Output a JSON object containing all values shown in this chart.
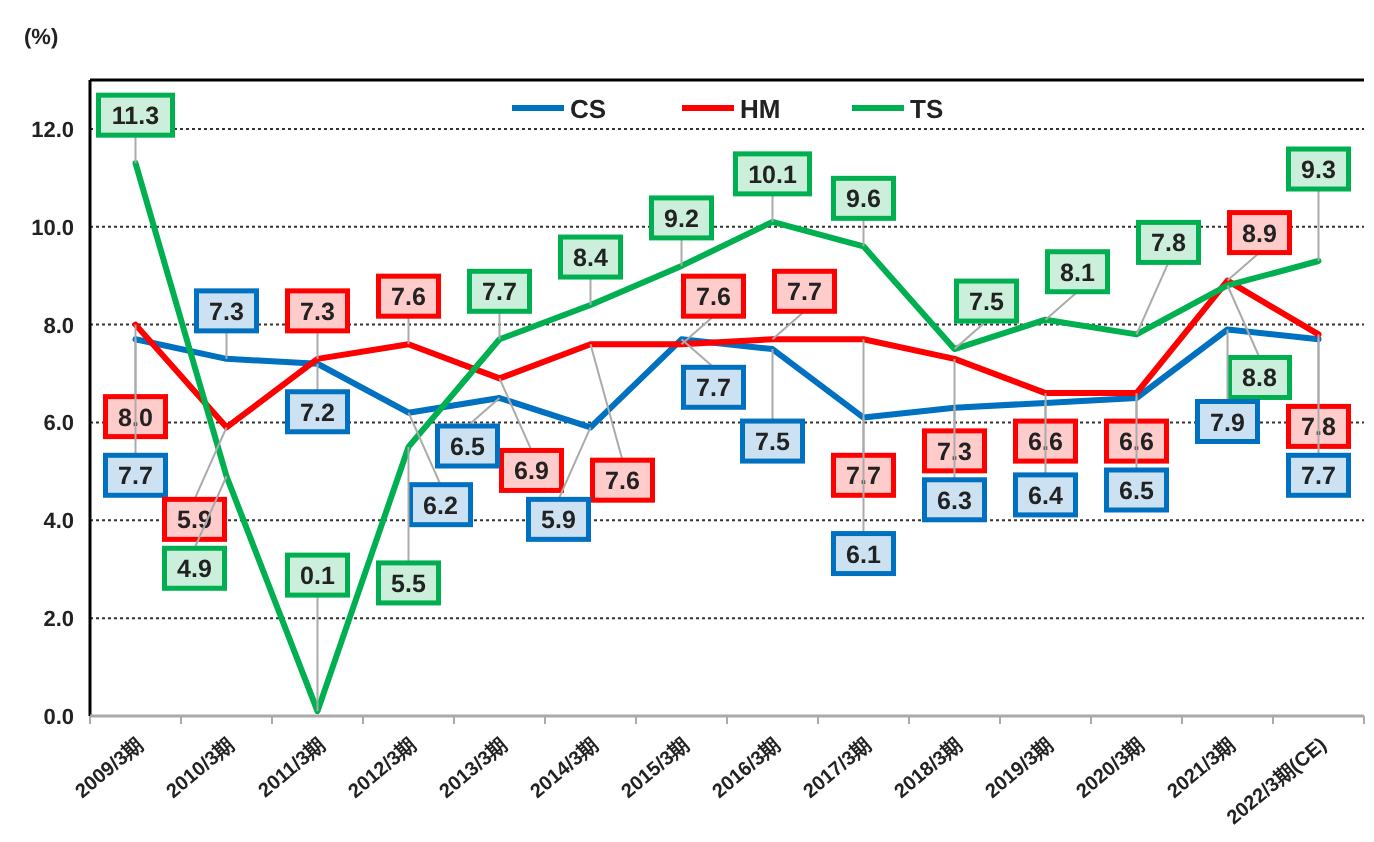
{
  "chart_data": {
    "type": "line",
    "ylabel": "(%)",
    "categories": [
      "2009/3期",
      "2010/3期",
      "2011/3期",
      "2012/3期",
      "2013/3期",
      "2014/3期",
      "2015/3期",
      "2016/3期",
      "2017/3期",
      "2018/3期",
      "2019/3期",
      "2020/3期",
      "2021/3期",
      "2022/3期(CE)"
    ],
    "series": [
      {
        "name": "CS",
        "color": "#0070c0",
        "values": [
          7.7,
          7.3,
          7.2,
          6.2,
          6.5,
          5.9,
          7.7,
          7.5,
          6.1,
          6.3,
          6.4,
          6.5,
          7.9,
          7.7
        ],
        "value_labels": [
          "7.7",
          "7.3",
          "7.2",
          "6.2",
          "6.5",
          "5.9",
          "7.7",
          "7.5",
          "6.1",
          "6.3",
          "6.4",
          "6.5",
          "7.9",
          "7.7"
        ]
      },
      {
        "name": "HM",
        "color": "#ff0000",
        "values": [
          8.0,
          5.9,
          7.3,
          7.6,
          6.9,
          7.6,
          7.6,
          7.7,
          7.7,
          7.3,
          6.6,
          6.6,
          8.9,
          7.8
        ],
        "value_labels": [
          "8.0",
          "5.9",
          "7.3",
          "7.6",
          "6.9",
          "7.6",
          "7.6",
          "7.7",
          "7.7",
          "7.3",
          "6.6",
          "6.6",
          "8.9",
          "7.8"
        ]
      },
      {
        "name": "TS",
        "color": "#00b050",
        "values": [
          11.3,
          4.9,
          0.1,
          5.5,
          7.7,
          8.4,
          9.2,
          10.1,
          9.6,
          7.5,
          8.1,
          7.8,
          8.8,
          9.3
        ],
        "value_labels": [
          "11.3",
          "4.9",
          "0.1",
          "5.5",
          "7.7",
          "8.4",
          "9.2",
          "10.1",
          "9.6",
          "7.5",
          "8.1",
          "7.8",
          "8.8",
          "9.3"
        ]
      }
    ],
    "ylim": [
      0,
      13
    ],
    "yticks": [
      {
        "value": 0,
        "label": "0.0"
      },
      {
        "value": 2,
        "label": "2.0"
      },
      {
        "value": 4,
        "label": "4.0"
      },
      {
        "value": 6,
        "label": "6.0"
      },
      {
        "value": 8,
        "label": "8.0"
      },
      {
        "value": 10,
        "label": "10.0"
      },
      {
        "value": 12,
        "label": "12.0"
      }
    ],
    "grid": "y",
    "legend": "top",
    "marker": "none",
    "line_style": "solid"
  }
}
